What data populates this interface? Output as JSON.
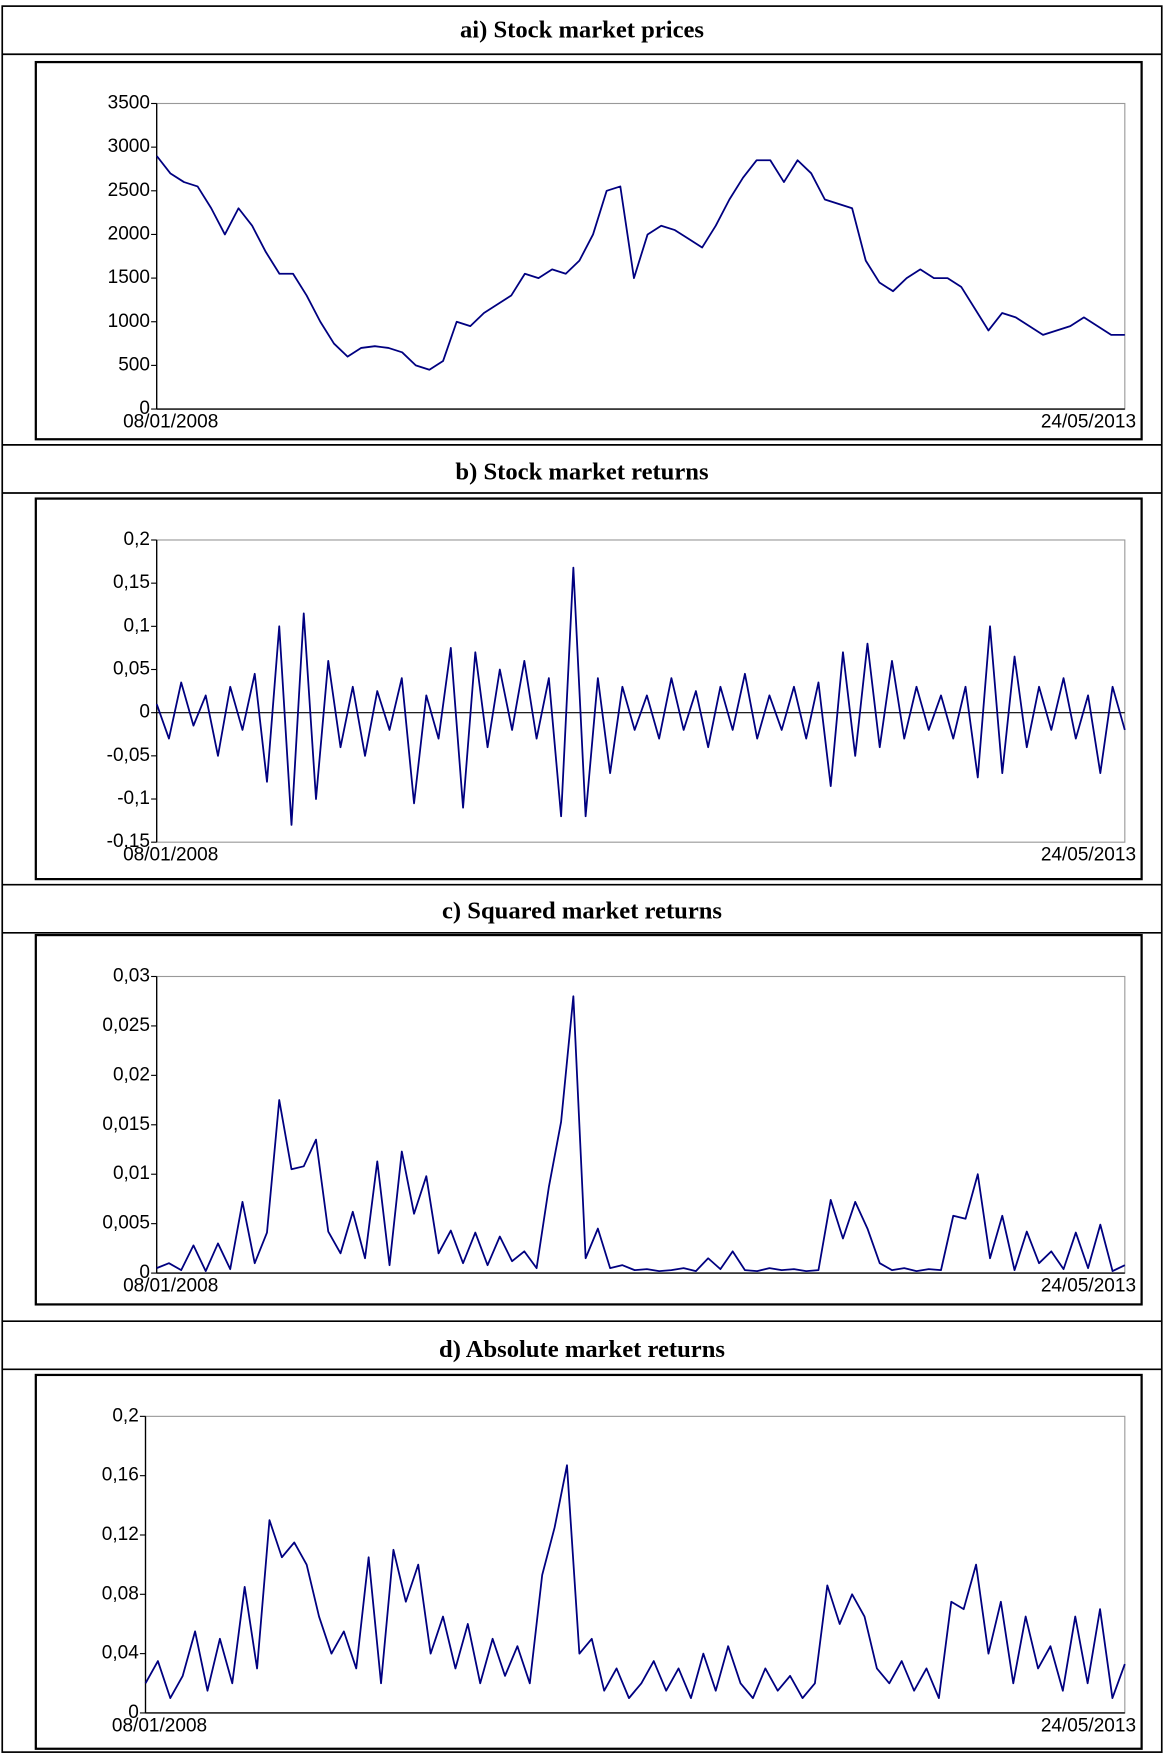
{
  "chart_data": [
    {
      "type": "line",
      "title": "ai) Stock market prices",
      "categories": [
        "08/01/2008",
        null,
        null,
        null,
        null,
        null,
        null,
        null,
        null,
        null,
        null,
        null,
        null,
        null,
        null,
        null,
        null,
        null,
        null,
        null,
        null,
        null,
        null,
        null,
        null,
        null,
        null,
        null,
        null,
        null,
        null,
        null,
        null,
        null,
        null,
        null,
        null,
        null,
        null,
        null,
        null,
        null,
        null,
        null,
        null,
        null,
        null,
        null,
        null,
        null,
        null,
        null,
        null,
        null,
        null,
        null,
        null,
        null,
        null,
        null,
        null,
        null,
        null,
        null,
        null,
        null,
        null,
        null,
        null,
        null,
        null,
        "24/05/2013"
      ],
      "series": [
        {
          "color": "#000080",
          "values": [
            2900,
            2700,
            2600,
            2550,
            2300,
            2000,
            2300,
            2100,
            1800,
            1550,
            1550,
            1300,
            1000,
            750,
            600,
            700,
            720,
            700,
            650,
            500,
            450,
            550,
            1000,
            950,
            1100,
            1200,
            1300,
            1550,
            1500,
            1600,
            1550,
            1700,
            2000,
            2500,
            2550,
            1500,
            2000,
            2100,
            2050,
            1950,
            1850,
            2100,
            2400,
            2650,
            2850,
            2850,
            2600,
            2850,
            2700,
            2400,
            2350,
            2300,
            1700,
            1450,
            1350,
            1500,
            1600,
            1500,
            1500,
            1400,
            1150,
            900,
            1100,
            1050,
            950,
            850,
            900,
            950,
            1050,
            950,
            850,
            850
          ]
        }
      ],
      "ylim": [
        0,
        3500
      ],
      "yticks": [
        0,
        500,
        1000,
        1500,
        2000,
        2500,
        3000,
        3500
      ]
    },
    {
      "type": "line",
      "title": "b) Stock market returns",
      "categories": [
        "08/01/2008",
        null,
        null,
        null,
        null,
        null,
        null,
        null,
        null,
        null,
        null,
        null,
        null,
        null,
        null,
        null,
        null,
        null,
        null,
        null,
        null,
        null,
        null,
        null,
        null,
        null,
        null,
        null,
        null,
        null,
        null,
        null,
        null,
        null,
        null,
        null,
        null,
        null,
        null,
        null,
        null,
        null,
        null,
        null,
        null,
        null,
        null,
        null,
        null,
        null,
        null,
        null,
        null,
        null,
        null,
        null,
        null,
        null,
        null,
        null,
        null,
        null,
        null,
        null,
        null,
        null,
        null,
        null,
        null,
        null,
        null,
        null,
        null,
        null,
        null,
        null,
        null,
        null,
        null,
        "24/05/2013"
      ],
      "series": [
        {
          "color": "#000080",
          "values": [
            0.01,
            -0.03,
            0.035,
            -0.015,
            0.02,
            -0.05,
            0.03,
            -0.02,
            0.045,
            -0.08,
            0.1,
            -0.13,
            0.115,
            -0.1,
            0.06,
            -0.04,
            0.03,
            -0.05,
            0.025,
            -0.02,
            0.04,
            -0.105,
            0.02,
            -0.03,
            0.075,
            -0.11,
            0.07,
            -0.04,
            0.05,
            -0.02,
            0.06,
            -0.03,
            0.04,
            -0.12,
            0.168,
            -0.12,
            0.04,
            -0.07,
            0.03,
            -0.02,
            0.02,
            -0.03,
            0.04,
            -0.02,
            0.025,
            -0.04,
            0.03,
            -0.02,
            0.045,
            -0.03,
            0.02,
            -0.02,
            0.03,
            -0.03,
            0.035,
            -0.085,
            0.07,
            -0.05,
            0.08,
            -0.04,
            0.06,
            -0.03,
            0.03,
            -0.02,
            0.02,
            -0.03,
            0.03,
            -0.075,
            0.1,
            -0.07,
            0.065,
            -0.04,
            0.03,
            -0.02,
            0.04,
            -0.03,
            0.02,
            -0.07,
            0.03,
            -0.02
          ]
        }
      ],
      "ylim": [
        -0.15,
        0.2
      ],
      "yticks": [
        {
          "value": -0.15,
          "label": "-0,15"
        },
        {
          "value": -0.1,
          "label": "-0,1"
        },
        {
          "value": -0.05,
          "label": "-0,05"
        },
        0,
        {
          "value": 0.05,
          "label": "0,05"
        },
        {
          "value": 0.1,
          "label": "0,1"
        },
        {
          "value": 0.15,
          "label": "0,15"
        },
        {
          "value": 0.2,
          "label": "0,2"
        }
      ],
      "zero_line": true
    },
    {
      "type": "line",
      "title": "c) Squared market returns",
      "categories": [
        "08/01/2008",
        null,
        null,
        null,
        null,
        null,
        null,
        null,
        null,
        null,
        null,
        null,
        null,
        null,
        null,
        null,
        null,
        null,
        null,
        null,
        null,
        null,
        null,
        null,
        null,
        null,
        null,
        null,
        null,
        null,
        null,
        null,
        null,
        null,
        null,
        null,
        null,
        null,
        null,
        null,
        null,
        null,
        null,
        null,
        null,
        null,
        null,
        null,
        null,
        null,
        null,
        null,
        null,
        null,
        null,
        null,
        null,
        null,
        null,
        null,
        null,
        null,
        null,
        null,
        null,
        null,
        null,
        null,
        null,
        null,
        null,
        null,
        null,
        null,
        null,
        null,
        null,
        null,
        null,
        "24/05/2013"
      ],
      "series": [
        {
          "color": "#000080",
          "values": [
            0.0005,
            0.001,
            0.0003,
            0.0028,
            0.0002,
            0.003,
            0.0004,
            0.0072,
            0.001,
            0.0041,
            0.0175,
            0.0105,
            0.0108,
            0.0135,
            0.0042,
            0.002,
            0.0062,
            0.0015,
            0.0113,
            0.0008,
            0.0123,
            0.006,
            0.0098,
            0.002,
            0.0043,
            0.001,
            0.0041,
            0.0008,
            0.0037,
            0.0012,
            0.0022,
            0.0005,
            0.0087,
            0.0153,
            0.028,
            0.0015,
            0.0045,
            0.0005,
            0.0008,
            0.0003,
            0.0004,
            0.0002,
            0.0003,
            0.0005,
            0.0002,
            0.0015,
            0.0004,
            0.0022,
            0.0003,
            0.0002,
            0.0005,
            0.0003,
            0.0004,
            0.0002,
            0.0003,
            0.0074,
            0.0035,
            0.0072,
            0.0045,
            0.001,
            0.0003,
            0.0005,
            0.0002,
            0.0004,
            0.0003,
            0.0058,
            0.0055,
            0.01,
            0.0015,
            0.0058,
            0.0003,
            0.0042,
            0.001,
            0.0022,
            0.0004,
            0.0041,
            0.0005,
            0.0049,
            0.0002,
            0.0008
          ]
        }
      ],
      "ylim": [
        0,
        0.03
      ],
      "yticks": [
        0,
        {
          "value": 0.005,
          "label": "0,005"
        },
        {
          "value": 0.01,
          "label": "0,01"
        },
        {
          "value": 0.015,
          "label": "0,015"
        },
        {
          "value": 0.02,
          "label": "0,02"
        },
        {
          "value": 0.025,
          "label": "0,025"
        },
        {
          "value": 0.03,
          "label": "0,03"
        }
      ]
    },
    {
      "type": "line",
      "title": "d) Absolute market returns",
      "categories": [
        "08/01/2008",
        null,
        null,
        null,
        null,
        null,
        null,
        null,
        null,
        null,
        null,
        null,
        null,
        null,
        null,
        null,
        null,
        null,
        null,
        null,
        null,
        null,
        null,
        null,
        null,
        null,
        null,
        null,
        null,
        null,
        null,
        null,
        null,
        null,
        null,
        null,
        null,
        null,
        null,
        null,
        null,
        null,
        null,
        null,
        null,
        null,
        null,
        null,
        null,
        null,
        null,
        null,
        null,
        null,
        null,
        null,
        null,
        null,
        null,
        null,
        null,
        null,
        null,
        null,
        null,
        null,
        null,
        null,
        null,
        null,
        null,
        null,
        null,
        null,
        null,
        null,
        null,
        null,
        null,
        "24/05/2013"
      ],
      "series": [
        {
          "color": "#000080",
          "values": [
            0.02,
            0.035,
            0.01,
            0.025,
            0.055,
            0.015,
            0.05,
            0.02,
            0.085,
            0.03,
            0.13,
            0.105,
            0.115,
            0.1,
            0.065,
            0.04,
            0.055,
            0.03,
            0.105,
            0.02,
            0.11,
            0.075,
            0.1,
            0.04,
            0.065,
            0.03,
            0.06,
            0.02,
            0.05,
            0.025,
            0.045,
            0.02,
            0.093,
            0.125,
            0.167,
            0.04,
            0.05,
            0.015,
            0.03,
            0.01,
            0.02,
            0.035,
            0.015,
            0.03,
            0.01,
            0.04,
            0.015,
            0.045,
            0.02,
            0.01,
            0.03,
            0.015,
            0.025,
            0.01,
            0.02,
            0.086,
            0.06,
            0.08,
            0.065,
            0.03,
            0.02,
            0.035,
            0.015,
            0.03,
            0.01,
            0.075,
            0.07,
            0.1,
            0.04,
            0.075,
            0.02,
            0.065,
            0.03,
            0.045,
            0.015,
            0.065,
            0.02,
            0.07,
            0.01,
            0.033
          ]
        }
      ],
      "ylim": [
        0,
        0.2
      ],
      "yticks": [
        0,
        {
          "value": 0.04,
          "label": "0,04"
        },
        {
          "value": 0.08,
          "label": "0,08"
        },
        {
          "value": 0.12,
          "label": "0,12"
        },
        {
          "value": 0.16,
          "label": "0,16"
        },
        {
          "value": 0.2,
          "label": "0,2"
        }
      ]
    }
  ]
}
